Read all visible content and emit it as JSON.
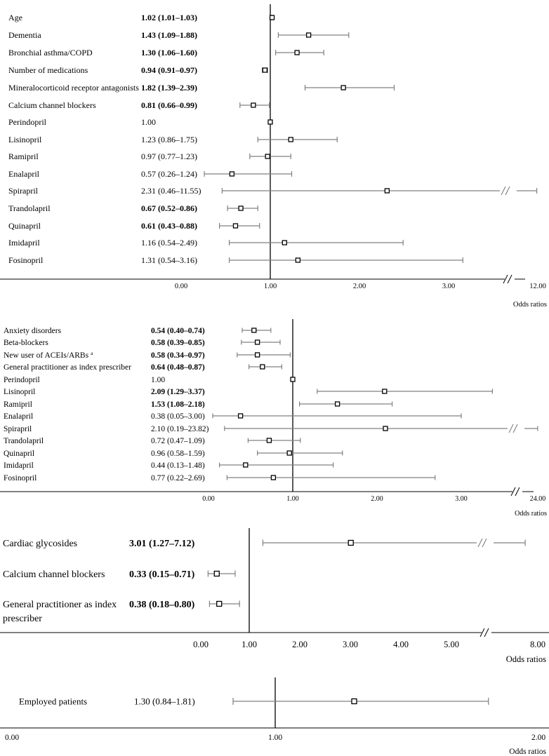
{
  "colors": {
    "whisker": "#808080",
    "marker": "#000000",
    "axis": "#000000",
    "text": "#000000",
    "background": "#ffffff"
  },
  "chart_data": [
    {
      "type": "forest",
      "xlabel": "Odds ratios",
      "reference": 1.0,
      "xlim": [
        0,
        12
      ],
      "tick_labels": [
        "0.00",
        "1.00",
        "2.00",
        "3.00",
        "12.00"
      ],
      "axis_break": true,
      "rows": [
        {
          "label": "Age",
          "or_text": "1.02 (1.01–1.03)",
          "bold": true,
          "or": 1.02,
          "lo": 1.01,
          "hi": 1.03
        },
        {
          "label": "Dementia",
          "or_text": "1.43 (1.09–1.88)",
          "bold": true,
          "or": 1.43,
          "lo": 1.09,
          "hi": 1.88
        },
        {
          "label": "Bronchial asthma/COPD",
          "or_text": "1.30 (1.06–1.60)",
          "bold": true,
          "or": 1.3,
          "lo": 1.06,
          "hi": 1.6
        },
        {
          "label": "Number of medications",
          "or_text": "0.94 (0.91–0.97)",
          "bold": true,
          "or": 0.94,
          "lo": 0.91,
          "hi": 0.97
        },
        {
          "label": "Mineralocorticoid receptor antagonists",
          "or_text": "1.82 (1.39–2.39)",
          "bold": true,
          "or": 1.82,
          "lo": 1.39,
          "hi": 2.39
        },
        {
          "label": "Calcium channel blockers",
          "or_text": "0.81 (0.66–0.99)",
          "bold": true,
          "or": 0.81,
          "lo": 0.66,
          "hi": 0.99
        },
        {
          "label": "Perindopril",
          "or_text": "1.00",
          "bold": false,
          "or": 1.0,
          "lo": 1.0,
          "hi": 1.0
        },
        {
          "label": "Lisinopril",
          "or_text": "1.23 (0.86–1.75)",
          "bold": false,
          "or": 1.23,
          "lo": 0.86,
          "hi": 1.75
        },
        {
          "label": "Ramipril",
          "or_text": "0.97 (0.77–1.23)",
          "bold": false,
          "or": 0.97,
          "lo": 0.77,
          "hi": 1.23
        },
        {
          "label": "Enalapril",
          "or_text": "0.57 (0.26–1.24)",
          "bold": false,
          "or": 0.57,
          "lo": 0.26,
          "hi": 1.24
        },
        {
          "label": "Spirapril",
          "or_text": "2.31 (0.46–11.55)",
          "bold": false,
          "or": 2.31,
          "lo": 0.46,
          "hi": 11.55
        },
        {
          "label": "Trandolapril",
          "or_text": "0.67 (0.52–0.86)",
          "bold": true,
          "or": 0.67,
          "lo": 0.52,
          "hi": 0.86
        },
        {
          "label": "Quinapril",
          "or_text": "0.61 (0.43–0.88)",
          "bold": true,
          "or": 0.61,
          "lo": 0.43,
          "hi": 0.88
        },
        {
          "label": "Imidapril",
          "or_text": "1.16 (0.54–2.49)",
          "bold": false,
          "or": 1.16,
          "lo": 0.54,
          "hi": 2.49
        },
        {
          "label": "Fosinopril",
          "or_text": "1.31 (0.54–3.16)",
          "bold": false,
          "or": 1.31,
          "lo": 0.54,
          "hi": 3.16
        }
      ]
    },
    {
      "type": "forest",
      "xlabel": "Odds ratios",
      "reference": 1.0,
      "xlim": [
        0,
        24
      ],
      "tick_labels": [
        "0.00",
        "1.00",
        "2.00",
        "3.00",
        "24.00"
      ],
      "axis_break": true,
      "rows": [
        {
          "label": "Anxiety disorders",
          "or_text": "0.54 (0.40–0.74)",
          "bold": true,
          "or": 0.54,
          "lo": 0.4,
          "hi": 0.74
        },
        {
          "label": "Beta-blockers",
          "or_text": "0.58 (0.39–0.85)",
          "bold": true,
          "or": 0.58,
          "lo": 0.39,
          "hi": 0.85
        },
        {
          "label": "New user of ACEIs/ARBs",
          "superscript": "a",
          "or_text": "0.58 (0.34–0.97)",
          "bold": true,
          "or": 0.58,
          "lo": 0.34,
          "hi": 0.97
        },
        {
          "label": "General practitioner as index prescriber",
          "or_text": "0.64 (0.48–0.87)",
          "bold": true,
          "or": 0.64,
          "lo": 0.48,
          "hi": 0.87
        },
        {
          "label": "Perindopril",
          "or_text": "1.00",
          "bold": false,
          "or": 1.0,
          "lo": 1.0,
          "hi": 1.0
        },
        {
          "label": "Lisinopril",
          "or_text": "2.09 (1.29–3.37)",
          "bold": true,
          "or": 2.09,
          "lo": 1.29,
          "hi": 3.37
        },
        {
          "label": "Ramipril",
          "or_text": "1.53 (1.08–2.18)",
          "bold": true,
          "or": 1.53,
          "lo": 1.08,
          "hi": 2.18
        },
        {
          "label": "Enalapril",
          "or_text": "0.38 (0.05–3.00)",
          "bold": false,
          "or": 0.38,
          "lo": 0.05,
          "hi": 3.0
        },
        {
          "label": "Spirapril",
          "or_text": "2.10 (0.19–23.82)",
          "bold": false,
          "or": 2.1,
          "lo": 0.19,
          "hi": 23.82
        },
        {
          "label": "Trandolapril",
          "or_text": "0.72 (0.47–1.09)",
          "bold": false,
          "or": 0.72,
          "lo": 0.47,
          "hi": 1.09
        },
        {
          "label": "Quinapril",
          "or_text": "0.96 (0.58–1.59)",
          "bold": false,
          "or": 0.96,
          "lo": 0.58,
          "hi": 1.59
        },
        {
          "label": "Imidapril",
          "or_text": "0.44 (0.13–1.48)",
          "bold": false,
          "or": 0.44,
          "lo": 0.13,
          "hi": 1.48
        },
        {
          "label": "Fosinopril",
          "or_text": "0.77 (0.22–2.69)",
          "bold": false,
          "or": 0.77,
          "lo": 0.22,
          "hi": 2.69
        }
      ]
    },
    {
      "type": "forest",
      "xlabel": "Odds ratios",
      "reference": 1.0,
      "xlim": [
        0,
        8
      ],
      "tick_labels": [
        "0.00",
        "1.00",
        "2.00",
        "3.00",
        "4.00",
        "5.00",
        "8.00"
      ],
      "axis_break": true,
      "rows": [
        {
          "label": "Cardiac glycosides",
          "or_text": "3.01 (1.27–7.12)",
          "bold": true,
          "or": 3.01,
          "lo": 1.27,
          "hi": 7.12
        },
        {
          "label": "Calcium channel blockers",
          "or_text": "0.33 (0.15–0.71)",
          "bold": true,
          "or": 0.33,
          "lo": 0.15,
          "hi": 0.71
        },
        {
          "label": "General practitioner as index",
          "label_line2": "prescriber",
          "or_text": "0.38 (0.18–0.80)",
          "bold": true,
          "or": 0.38,
          "lo": 0.18,
          "hi": 0.8
        }
      ]
    },
    {
      "type": "forest",
      "xlabel": "Odds ratios",
      "reference": 1.0,
      "xlim": [
        0,
        2
      ],
      "tick_labels": [
        "0.00",
        "1.00",
        "2.00"
      ],
      "axis_break": false,
      "rows": [
        {
          "label": "Employed patients",
          "or_text": "1.30 (0.84–1.81)",
          "bold": false,
          "or": 1.3,
          "lo": 0.84,
          "hi": 1.81
        }
      ]
    }
  ]
}
